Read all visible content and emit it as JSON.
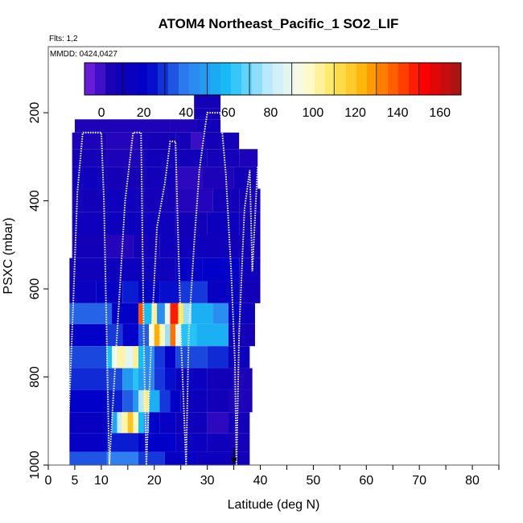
{
  "chart_data": {
    "type": "heatmap",
    "title": "ATOM4 Northeast_Pacific_1 SO2_LIF",
    "flights_label": "Flts: 1,2",
    "dates_label": "MMDD: 0424,0427",
    "xlabel": "Latitude (deg N)",
    "ylabel": "PSXC (mbar)",
    "xlim": [
      0,
      85
    ],
    "ylim": [
      1000,
      50
    ],
    "y_reversed": true,
    "x_ticks": [
      0,
      5,
      10,
      20,
      30,
      40,
      50,
      60,
      70,
      80
    ],
    "y_ticks": [
      200,
      400,
      600,
      800,
      1000
    ],
    "colorbar": {
      "min": -8,
      "max": 170,
      "ticks": [
        0,
        20,
        40,
        60,
        80,
        100,
        120,
        140,
        160
      ],
      "stops": [
        {
          "v": -8,
          "c": "#7a22e0"
        },
        {
          "v": 5,
          "c": "#1500b5"
        },
        {
          "v": 22,
          "c": "#0000c8"
        },
        {
          "v": 40,
          "c": "#2f7ff0"
        },
        {
          "v": 60,
          "c": "#14bff5"
        },
        {
          "v": 80,
          "c": "#c6ecff"
        },
        {
          "v": 96,
          "c": "#fffde0"
        },
        {
          "v": 110,
          "c": "#ffe85a"
        },
        {
          "v": 125,
          "c": "#ffb000"
        },
        {
          "v": 140,
          "c": "#ff5200"
        },
        {
          "v": 152,
          "c": "#ff0000"
        },
        {
          "v": 170,
          "c": "#a01616"
        }
      ]
    },
    "rows": [
      {
        "p": 175,
        "cells": [
          [
            27.5,
            32.5,
            6
          ]
        ]
      },
      {
        "p": 205,
        "cells": [
          [
            27.5,
            32.5,
            6
          ]
        ]
      },
      {
        "p": 225,
        "cells": [
          [
            5,
            23,
            4
          ],
          [
            23,
            28,
            4
          ],
          [
            28,
            32.5,
            8
          ]
        ]
      },
      {
        "p": 265,
        "cells": [
          [
            4.5,
            11,
            4
          ],
          [
            11,
            17,
            3
          ],
          [
            17,
            24,
            5
          ],
          [
            24,
            27,
            6
          ],
          [
            27,
            29,
            0
          ],
          [
            29,
            36,
            7
          ]
        ]
      },
      {
        "p": 300,
        "cells": [
          [
            4.5,
            11,
            6
          ],
          [
            11,
            18,
            4
          ],
          [
            18,
            24,
            8
          ],
          [
            24,
            30,
            8
          ],
          [
            30,
            36,
            6
          ],
          [
            36,
            39.5,
            4
          ]
        ]
      },
      {
        "p": 345,
        "cells": [
          [
            4.5,
            11,
            10
          ],
          [
            11,
            18,
            5
          ],
          [
            18,
            24,
            8
          ],
          [
            24,
            29,
            2
          ],
          [
            29,
            35,
            4
          ],
          [
            35,
            39.5,
            8
          ]
        ]
      },
      {
        "p": 400,
        "cells": [
          [
            4.5,
            11,
            8
          ],
          [
            11,
            18,
            10
          ],
          [
            18,
            24,
            6
          ],
          [
            24,
            31,
            3
          ],
          [
            31,
            36,
            8
          ],
          [
            36,
            40,
            6
          ]
        ]
      },
      {
        "p": 450,
        "cells": [
          [
            4.5,
            11,
            10
          ],
          [
            11,
            17,
            12
          ],
          [
            17,
            24,
            10
          ],
          [
            24,
            30,
            8
          ],
          [
            30,
            36,
            12
          ],
          [
            36,
            40,
            8
          ]
        ]
      },
      {
        "p": 505,
        "cells": [
          [
            4.5,
            11,
            8
          ],
          [
            11,
            16,
            3
          ],
          [
            16,
            21,
            6
          ],
          [
            21,
            28,
            10
          ],
          [
            28,
            34,
            10
          ],
          [
            34,
            40,
            8
          ]
        ]
      },
      {
        "p": 555,
        "cells": [
          [
            4,
            11,
            10
          ],
          [
            11,
            18,
            12
          ],
          [
            18,
            24,
            10
          ],
          [
            24,
            29,
            18
          ],
          [
            29,
            36,
            22
          ],
          [
            36,
            40,
            10
          ]
        ]
      },
      {
        "p": 610,
        "cells": [
          [
            4,
            9,
            14
          ],
          [
            9,
            14,
            18
          ],
          [
            14,
            17,
            26
          ],
          [
            17,
            21,
            20
          ],
          [
            21,
            25,
            24
          ],
          [
            25,
            30,
            30
          ],
          [
            30,
            36,
            16
          ],
          [
            36,
            40,
            8
          ]
        ]
      },
      {
        "p": 655,
        "cells": [
          [
            4,
            12,
            36
          ],
          [
            12,
            17,
            20
          ],
          [
            17,
            18,
            140
          ],
          [
            18,
            19.5,
            60
          ],
          [
            19.5,
            20.5,
            105
          ],
          [
            20.5,
            22,
            45
          ],
          [
            22,
            23,
            90
          ],
          [
            23,
            24.5,
            148
          ],
          [
            24.5,
            25.5,
            110
          ],
          [
            25.5,
            27,
            75
          ],
          [
            27,
            31,
            55
          ],
          [
            31,
            34,
            45
          ],
          [
            34,
            36,
            20
          ],
          [
            36,
            39,
            12
          ]
        ]
      },
      {
        "p": 705,
        "cells": [
          [
            4,
            11,
            22
          ],
          [
            11,
            14,
            30
          ],
          [
            14,
            17,
            22
          ],
          [
            17,
            19,
            35
          ],
          [
            19,
            20,
            95
          ],
          [
            20,
            21,
            125
          ],
          [
            21,
            22,
            100
          ],
          [
            22,
            23,
            75
          ],
          [
            23,
            24,
            135
          ],
          [
            24,
            25,
            90
          ],
          [
            25,
            28,
            62
          ],
          [
            28,
            34,
            55
          ],
          [
            34,
            36,
            10
          ],
          [
            36,
            39,
            6
          ]
        ]
      },
      {
        "p": 755,
        "cells": [
          [
            4,
            11,
            32
          ],
          [
            11,
            12,
            60
          ],
          [
            12,
            13,
            90
          ],
          [
            13,
            14.5,
            102
          ],
          [
            14.5,
            16,
            88
          ],
          [
            16,
            17,
            104
          ],
          [
            17,
            18,
            60
          ],
          [
            18,
            20,
            45
          ],
          [
            20,
            22,
            30
          ],
          [
            22,
            24,
            22
          ],
          [
            24,
            30,
            32
          ],
          [
            30,
            34,
            28
          ],
          [
            34,
            38,
            12
          ]
        ]
      },
      {
        "p": 805,
        "cells": [
          [
            4,
            11,
            28
          ],
          [
            11,
            14,
            32
          ],
          [
            14,
            16,
            48
          ],
          [
            16,
            17,
            62
          ],
          [
            17,
            18,
            50
          ],
          [
            18,
            20,
            42
          ],
          [
            20,
            22,
            30
          ],
          [
            22,
            24,
            24
          ],
          [
            24,
            30,
            14
          ],
          [
            30,
            35,
            8
          ],
          [
            35,
            38.5,
            4
          ]
        ]
      },
      {
        "p": 855,
        "cells": [
          [
            4,
            11,
            22
          ],
          [
            11,
            14,
            26
          ],
          [
            14,
            16,
            35
          ],
          [
            16,
            17,
            48
          ],
          [
            17,
            18,
            78
          ],
          [
            18,
            19,
            108
          ],
          [
            19,
            21,
            55
          ],
          [
            21,
            23,
            30
          ],
          [
            23,
            25,
            20
          ],
          [
            25,
            30,
            12
          ],
          [
            30,
            34,
            8
          ],
          [
            34,
            38.5,
            4
          ]
        ]
      },
      {
        "p": 905,
        "cells": [
          [
            4,
            11,
            16
          ],
          [
            11,
            12,
            24
          ],
          [
            12,
            13,
            52
          ],
          [
            13,
            13.8,
            80
          ],
          [
            13.8,
            15,
            102
          ],
          [
            15,
            16,
            120
          ],
          [
            16,
            17,
            100
          ],
          [
            17,
            18,
            60
          ],
          [
            18,
            19,
            40
          ],
          [
            19,
            21,
            22
          ],
          [
            21,
            24,
            18
          ],
          [
            24,
            30,
            10
          ],
          [
            30,
            34,
            2
          ],
          [
            34,
            38,
            8
          ]
        ]
      },
      {
        "p": 950,
        "cells": [
          [
            4,
            11,
            18
          ],
          [
            11,
            17,
            26
          ],
          [
            17,
            24,
            22
          ],
          [
            24,
            30,
            14
          ],
          [
            30,
            34,
            10
          ],
          [
            34,
            38,
            6
          ]
        ]
      },
      {
        "p": 990,
        "cells": [
          [
            4,
            11,
            34
          ],
          [
            11,
            17,
            40
          ],
          [
            17,
            22,
            30
          ],
          [
            22,
            28,
            18
          ],
          [
            28,
            34,
            12
          ],
          [
            34,
            38,
            10
          ]
        ]
      }
    ],
    "flight_track": [
      [
        3.5,
        1000
      ],
      [
        4.5,
        700
      ],
      [
        5.5,
        380
      ],
      [
        6.5,
        245
      ],
      [
        10,
        245
      ],
      [
        10.5,
        400
      ],
      [
        11,
        700
      ],
      [
        11.5,
        1000
      ],
      [
        13,
        700
      ],
      [
        14.5,
        400
      ],
      [
        16,
        245
      ],
      [
        17.5,
        245
      ],
      [
        18,
        700
      ],
      [
        18.5,
        1000
      ],
      [
        19.5,
        700
      ],
      [
        20.5,
        460
      ],
      [
        22,
        360
      ],
      [
        23,
        265
      ],
      [
        24,
        265
      ],
      [
        25,
        700
      ],
      [
        26,
        1000
      ],
      [
        26.5,
        700
      ],
      [
        27.5,
        500
      ],
      [
        28.5,
        330
      ],
      [
        29.5,
        240
      ],
      [
        30,
        200
      ],
      [
        32.5,
        200
      ],
      [
        33.5,
        340
      ],
      [
        34.5,
        560
      ],
      [
        35.2,
        760
      ],
      [
        35.5,
        1000
      ],
      [
        36,
        700
      ],
      [
        37,
        420
      ],
      [
        38,
        330
      ],
      [
        38.5,
        560
      ],
      [
        39.5,
        320
      ]
    ],
    "arrow_lat": 35
  }
}
